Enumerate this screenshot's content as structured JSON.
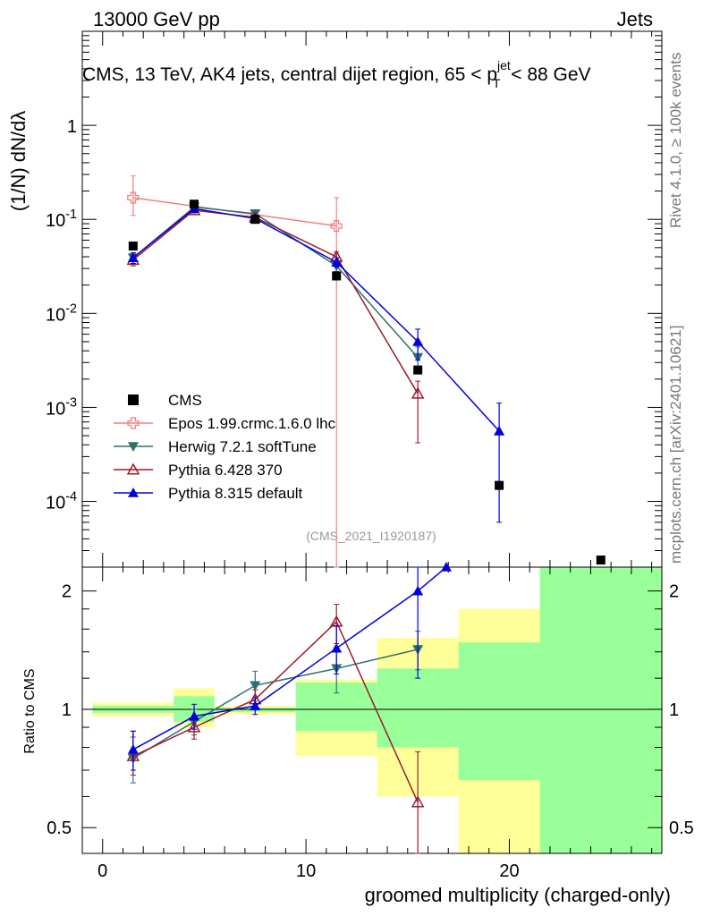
{
  "header": {
    "top_left": "13000 GeV pp",
    "top_right": "Jets",
    "title": "CMS, 13 TeV, AK4 jets, central dijet region, 65 < p_T^{jet} < 88 GeV",
    "watermark": "(CMS_2021_I1920187)",
    "side_top": "Rivet 4.1.0, ≥ 100k events",
    "side_bottom": "mcplots.cern.ch [arXiv:2401.10621]"
  },
  "chart_data": [
    {
      "type": "line",
      "panel": "main",
      "ylabel": "(1/N) dN/dλ",
      "xlabel": "groomed multiplicity (charged-only)",
      "yscale": "log",
      "ylim": [
        2e-05,
        10
      ],
      "xlim": [
        -1,
        27.5
      ],
      "y_tick_labels": [
        "10^-4",
        "10^-3",
        "10^-2",
        "10^-1",
        "1"
      ],
      "x_tick_labels": [
        "0",
        "10",
        "20"
      ],
      "data": {
        "name": "CMS",
        "x": [
          1.5,
          4.5,
          7.5,
          11.5,
          15.5,
          19.5,
          24.5
        ],
        "y": [
          0.052,
          0.145,
          0.1,
          0.025,
          0.0025,
          0.000148,
          2.38e-05
        ],
        "color": "#000000"
      },
      "series": [
        {
          "name": "Epos 1.99.crmc.1.6.0 lhc",
          "color": "#f08080",
          "marker": "open-cross",
          "x": [
            1.5,
            11.5
          ],
          "y": [
            0.17,
            0.085
          ],
          "yerr_lo": [
            0.06,
            0.085
          ],
          "yerr_hi": [
            0.12,
            0.085
          ]
        },
        {
          "name": "Herwig 7.2.1 softTune",
          "color": "#2f6f6f",
          "marker": "filled-triangle-down",
          "x": [
            1.5,
            4.5,
            7.5,
            11.5,
            15.5
          ],
          "y": [
            0.039,
            0.135,
            0.115,
            0.032,
            0.0034
          ],
          "yerr_lo": [
            0.005,
            0.008,
            0.008,
            0.004,
            0.001
          ],
          "yerr_hi": [
            0.005,
            0.008,
            0.008,
            0.004,
            0.001
          ]
        },
        {
          "name": "Pythia 6.428 370",
          "color": "#9b1c2e",
          "marker": "open-triangle-up",
          "x": [
            1.5,
            4.5,
            7.5,
            11.5,
            15.5
          ],
          "y": [
            0.037,
            0.125,
            0.105,
            0.04,
            0.0014
          ],
          "yerr_lo": [
            0.005,
            0.008,
            0.008,
            0.005,
            0.00098
          ],
          "yerr_hi": [
            0.005,
            0.008,
            0.008,
            0.005,
            0.0005
          ]
        },
        {
          "name": "Pythia 8.315 default",
          "color": "#0000dd",
          "marker": "filled-triangle-up",
          "x": [
            1.5,
            4.5,
            7.5,
            11.5,
            15.5,
            19.5
          ],
          "y": [
            0.039,
            0.13,
            0.102,
            0.035,
            0.005,
            0.00056
          ],
          "yerr_lo": [
            0.005,
            0.008,
            0.008,
            0.004,
            0.0018,
            0.0005
          ],
          "yerr_hi": [
            0.005,
            0.008,
            0.008,
            0.004,
            0.0018,
            0.00055
          ]
        }
      ]
    },
    {
      "type": "line",
      "panel": "ratio",
      "ylabel": "Ratio to CMS",
      "xlabel": "groomed multiplicity (charged-only)",
      "yscale": "log",
      "ylim": [
        0.43,
        2.3
      ],
      "xlim": [
        -1,
        27.5
      ],
      "y_tick_labels": [
        "0.5",
        "1",
        "2"
      ],
      "reference_line": 1,
      "bands": [
        {
          "x0": -0.5,
          "x1": 3.5,
          "yellow": [
            0.96,
            1.04
          ],
          "green": [
            0.98,
            1.02
          ]
        },
        {
          "x0": 3.5,
          "x1": 5.5,
          "yellow": [
            0.9,
            1.13
          ],
          "green": [
            0.93,
            1.08
          ]
        },
        {
          "x0": 5.5,
          "x1": 9.5,
          "yellow": [
            0.97,
            1.02
          ],
          "green": [
            0.985,
            1.01
          ]
        },
        {
          "x0": 9.5,
          "x1": 13.5,
          "yellow": [
            0.76,
            1.19
          ],
          "green": [
            0.88,
            1.17
          ]
        },
        {
          "x0": 13.5,
          "x1": 17.5,
          "yellow": [
            0.6,
            1.52
          ],
          "green": [
            0.8,
            1.27
          ]
        },
        {
          "x0": 17.5,
          "x1": 21.5,
          "yellow": [
            0.3,
            1.8
          ],
          "green": [
            0.66,
            1.48
          ]
        },
        {
          "x0": 21.5,
          "x1": 27.5,
          "yellow": [
            0.3,
            3.0
          ],
          "green": [
            0.3,
            3.0
          ]
        }
      ],
      "series": [
        {
          "name": "Herwig 7.2.1 softTune",
          "color": "#2f6f6f",
          "marker": "filled-triangle-down",
          "x": [
            1.5,
            4.5,
            7.5,
            11.5,
            15.5
          ],
          "y": [
            0.75,
            0.93,
            1.15,
            1.27,
            1.42
          ],
          "yerr_lo": [
            0.1,
            0.07,
            0.1,
            0.17,
            0.16
          ],
          "yerr_hi": [
            0.1,
            0.07,
            0.1,
            0.17,
            0.16
          ]
        },
        {
          "name": "Pythia 6.428 370",
          "color": "#9b1c2e",
          "marker": "open-triangle-up",
          "x": [
            1.5,
            4.5,
            7.5,
            11.5,
            15.5
          ],
          "y": [
            0.76,
            0.9,
            1.06,
            1.67,
            0.58
          ],
          "yerr_lo": [
            0.08,
            0.06,
            0.06,
            0.2,
            0.23
          ],
          "yerr_hi": [
            0.12,
            0.06,
            0.06,
            0.18,
            0.2
          ]
        },
        {
          "name": "Pythia 8.315 default",
          "color": "#0000dd",
          "marker": "filled-triangle-up",
          "x": [
            1.5,
            4.5,
            7.5,
            11.5,
            15.5,
            16.9
          ],
          "y": [
            0.79,
            0.96,
            1.02,
            1.43,
            2.0,
            2.3
          ],
          "yerr_lo": [
            0.09,
            0.07,
            0.05,
            0.2,
            0.8,
            0
          ],
          "yerr_hi": [
            0.09,
            0.07,
            0.05,
            0.2,
            0.6,
            0
          ]
        }
      ]
    }
  ]
}
